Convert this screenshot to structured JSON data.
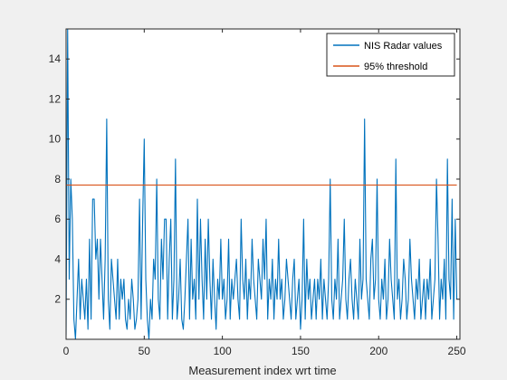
{
  "chart_data": {
    "type": "line",
    "title": "",
    "xlabel": "Measurement index wrt time",
    "ylabel": "",
    "xlim": [
      0,
      252
    ],
    "ylim": [
      0,
      15.5
    ],
    "x_ticks": [
      0,
      50,
      100,
      150,
      200,
      250
    ],
    "y_ticks": [
      2,
      4,
      6,
      8,
      10,
      12,
      14
    ],
    "grid": false,
    "legend_position": "top-right",
    "series": [
      {
        "name": "NIS Radar values",
        "color": "#0072bd",
        "x_start": 0,
        "x_step": 1,
        "values": [
          0.2,
          15.5,
          3,
          8,
          6,
          1,
          0,
          2,
          4,
          1,
          3,
          2,
          1,
          3,
          0.5,
          5,
          1,
          7,
          7,
          4,
          5,
          2,
          5,
          3,
          1,
          4,
          11,
          2,
          0.5,
          4,
          3,
          2,
          1,
          4,
          1,
          3,
          2,
          3,
          1,
          0.5,
          2,
          1,
          3,
          2,
          0.5,
          1,
          2,
          7,
          1,
          6,
          10,
          3,
          1,
          0,
          2,
          1,
          4,
          3,
          8,
          2,
          1,
          5,
          3,
          6,
          6,
          1,
          4,
          6,
          1,
          3,
          9,
          1,
          2,
          4,
          1,
          0.5,
          2,
          4,
          6,
          1,
          5,
          2,
          3,
          1,
          7,
          2,
          6,
          3,
          1,
          5,
          2,
          6,
          3,
          1,
          4,
          2,
          0.5,
          3,
          2,
          5,
          2,
          3,
          1,
          2,
          5,
          1,
          3,
          2,
          3,
          4,
          2,
          1,
          6,
          3,
          2,
          4,
          1,
          3,
          2,
          5,
          3,
          2,
          1,
          4,
          3,
          2,
          5,
          3,
          6,
          1,
          3,
          2,
          4,
          1,
          3,
          2,
          5,
          2,
          3,
          1,
          2,
          4,
          3,
          2,
          1,
          3,
          4,
          1,
          2,
          3,
          0.5,
          2,
          6,
          1,
          4,
          2,
          3,
          1,
          2,
          3,
          1,
          3,
          2,
          4,
          1,
          3,
          2,
          1,
          3,
          8,
          2,
          1,
          3,
          2,
          5,
          1,
          2,
          3,
          6,
          2,
          1,
          3,
          4,
          2,
          1,
          3,
          2,
          1,
          5,
          2,
          3,
          11,
          3,
          2,
          1,
          4,
          5,
          2,
          3,
          8,
          2,
          1,
          3,
          2,
          4,
          1,
          2,
          5,
          3,
          2,
          1,
          9,
          2,
          3,
          1,
          2,
          4,
          3,
          1,
          2,
          5,
          3,
          2,
          1,
          3,
          2,
          4,
          1,
          2,
          3,
          1,
          3,
          2,
          4,
          1,
          2,
          3,
          8,
          5,
          1,
          3,
          2,
          4,
          1,
          9,
          3,
          2,
          7,
          1,
          6,
          2
        ]
      },
      {
        "name": "95% threshold",
        "color": "#d95319",
        "x": [
          0,
          250
        ],
        "values": [
          7.7,
          7.7
        ]
      }
    ]
  }
}
